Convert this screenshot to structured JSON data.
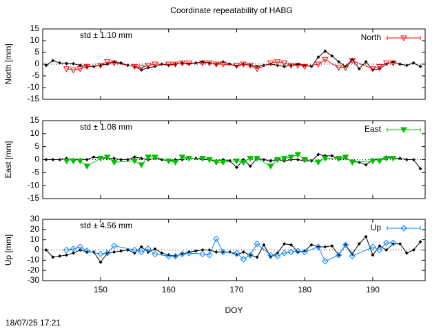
{
  "title": "Coordinate repeatability of HABG",
  "timestamp": "18/07/25 17:21",
  "chart_data": [
    {
      "type": "line",
      "ylabel": "North [mm]",
      "annotation": "std ± 1.10 mm",
      "xlim": [
        141.5,
        197.7
      ],
      "xticks": [
        150,
        160,
        170,
        180,
        190
      ],
      "ylim": [
        -15,
        15
      ],
      "yticks": [
        -15,
        -10,
        -5,
        0,
        5,
        10,
        15
      ],
      "series": [
        {
          "color": "#000000",
          "marker": "diamond-filled",
          "x": [
            142,
            143,
            144,
            145,
            146,
            147,
            148,
            149,
            150,
            151,
            152,
            153,
            154,
            155,
            156,
            157,
            158,
            159,
            160,
            161,
            162,
            163,
            164,
            165,
            166,
            167,
            168,
            169,
            170,
            171,
            172,
            173,
            174,
            175,
            176,
            177,
            178,
            179,
            180,
            181,
            182,
            183,
            184,
            185,
            186,
            187,
            188,
            189,
            190,
            191,
            192,
            193,
            194,
            195,
            196,
            197
          ],
          "values": [
            -0.5,
            1.5,
            0.5,
            0.3,
            0.2,
            -0.5,
            -1,
            -1,
            -0.5,
            0,
            1,
            0.5,
            -0.5,
            -1,
            -2.5,
            -1.5,
            -1,
            0,
            -0.5,
            0,
            0.5,
            0,
            0.5,
            1,
            0.5,
            0,
            1,
            0,
            -1,
            0,
            -0.5,
            -1,
            -0.5,
            0,
            -0.5,
            -1,
            -0.5,
            0,
            -0.5,
            -1,
            3,
            5.5,
            3.5,
            1,
            -1,
            2,
            -2,
            1,
            -2.5,
            -2,
            0,
            1,
            0,
            -0.5,
            0.5,
            -1
          ]
        },
        {
          "name": "North",
          "color": "#ff0000",
          "marker": "triangle-open",
          "x": [
            145,
            146,
            147,
            148,
            150,
            151,
            152,
            155,
            156,
            157,
            158,
            160,
            161,
            162,
            163,
            165,
            166,
            167,
            168,
            170,
            171,
            172,
            173,
            175,
            176,
            177,
            178,
            179,
            180,
            182,
            183,
            185,
            186,
            187,
            190,
            191,
            192,
            193
          ],
          "values": [
            -2,
            -2.5,
            -2,
            -1,
            -0.5,
            1,
            0.5,
            -1,
            -1.5,
            -0.5,
            0,
            0,
            0,
            0.5,
            0.5,
            0.5,
            0.5,
            0,
            0,
            -0.5,
            0,
            -0.5,
            -2,
            0.5,
            1,
            0.5,
            -0.5,
            -0.5,
            -1,
            0,
            2,
            -1.5,
            -1.5,
            1.5,
            -2,
            -1,
            0.5,
            0.5
          ]
        }
      ]
    },
    {
      "type": "line",
      "ylabel": "East [mm]",
      "annotation": "std ± 1.08 mm",
      "xlim": [
        141.5,
        197.7
      ],
      "xticks": [
        150,
        160,
        170,
        180,
        190
      ],
      "ylim": [
        -15,
        15
      ],
      "yticks": [
        -15,
        -10,
        -5,
        0,
        5,
        10,
        15
      ],
      "series": [
        {
          "color": "#000000",
          "marker": "diamond-filled",
          "x": [
            142,
            143,
            144,
            145,
            146,
            147,
            148,
            149,
            150,
            151,
            152,
            153,
            154,
            155,
            156,
            157,
            158,
            159,
            160,
            161,
            162,
            163,
            164,
            165,
            166,
            167,
            168,
            169,
            170,
            171,
            172,
            173,
            174,
            175,
            176,
            177,
            178,
            179,
            180,
            181,
            182,
            183,
            184,
            185,
            186,
            187,
            188,
            189,
            190,
            191,
            192,
            193,
            194,
            195,
            196,
            197
          ],
          "values": [
            0,
            0,
            0,
            0.5,
            0,
            0,
            0,
            1,
            0.5,
            0.5,
            0.5,
            0,
            0,
            1,
            0.5,
            0,
            0.5,
            0,
            -0.5,
            0,
            0,
            0.5,
            0.5,
            0,
            0,
            -0.5,
            0,
            -0.5,
            -3,
            0,
            -2.5,
            0.5,
            0,
            -0.5,
            0,
            -0.5,
            0,
            0,
            -0.5,
            -0.5,
            2,
            1.5,
            1.5,
            0,
            0.5,
            -0.5,
            -1,
            -2,
            0,
            0,
            1,
            0.5,
            0.5,
            0,
            0,
            -3.5
          ]
        },
        {
          "name": "East",
          "color": "#00c000",
          "marker": "triangle-filled",
          "x": [
            145,
            146,
            147,
            148,
            150,
            151,
            152,
            155,
            156,
            157,
            158,
            160,
            161,
            162,
            163,
            165,
            166,
            167,
            168,
            170,
            171,
            172,
            173,
            175,
            176,
            177,
            178,
            179,
            180,
            182,
            183,
            185,
            186,
            187,
            190,
            191,
            192,
            193
          ],
          "values": [
            -0.5,
            -0.5,
            -0.5,
            -2.5,
            0.5,
            1,
            -1,
            -0.5,
            -2,
            1,
            1,
            -0.5,
            -1,
            1,
            0.5,
            0.5,
            0,
            -1,
            -1,
            -0.5,
            -1,
            0.5,
            0.5,
            -2.5,
            0,
            0.5,
            1,
            2,
            0,
            -1,
            0.5,
            0.5,
            1,
            -1,
            -0.5,
            -0.5,
            0.5,
            0.5
          ]
        }
      ]
    },
    {
      "type": "line",
      "ylabel": "Up [mm]",
      "annotation": "std ± 4.56 mm",
      "xlabel": "DOY",
      "xlim": [
        141.5,
        197.7
      ],
      "xticks": [
        150,
        160,
        170,
        180,
        190
      ],
      "ylim": [
        -30,
        30
      ],
      "yticks": [
        -30,
        -20,
        -10,
        0,
        10,
        20,
        30
      ],
      "series": [
        {
          "color": "#000000",
          "marker": "diamond-filled",
          "x": [
            142,
            143,
            144,
            145,
            146,
            147,
            148,
            149,
            150,
            151,
            152,
            153,
            154,
            155,
            156,
            157,
            158,
            159,
            160,
            161,
            162,
            163,
            164,
            165,
            166,
            167,
            168,
            169,
            170,
            171,
            172,
            173,
            174,
            175,
            176,
            177,
            178,
            179,
            180,
            181,
            182,
            183,
            184,
            185,
            186,
            187,
            188,
            189,
            190,
            191,
            192,
            193,
            194,
            195,
            196,
            197
          ],
          "values": [
            0,
            -7,
            -6,
            -5,
            -3,
            0,
            -2,
            -2,
            -12,
            -3,
            -2,
            -1,
            0,
            -3,
            3,
            -2,
            1,
            -3,
            -5,
            -6,
            -4,
            -2,
            -1,
            0,
            0,
            -2,
            -2,
            -2,
            -5,
            -2,
            -5,
            -7,
            5,
            -7,
            -3,
            6,
            5,
            -2,
            -1,
            5,
            3,
            3,
            4,
            -5,
            5,
            -4,
            6,
            13,
            -5,
            4,
            0,
            6,
            6,
            -3,
            0,
            8
          ]
        },
        {
          "name": "Up",
          "color": "#0080ff",
          "marker": "diamond-open",
          "x": [
            145,
            146,
            147,
            148,
            150,
            151,
            152,
            155,
            156,
            157,
            158,
            160,
            161,
            162,
            163,
            165,
            166,
            167,
            168,
            170,
            171,
            172,
            173,
            175,
            176,
            177,
            178,
            179,
            180,
            182,
            183,
            185,
            186,
            187,
            190,
            191,
            192,
            193
          ],
          "values": [
            0,
            1,
            3,
            -1,
            -4,
            -3,
            4,
            0,
            -2,
            1,
            -4,
            -6,
            -6,
            -4,
            -3,
            -4,
            -5,
            11,
            -2,
            -3,
            -9,
            -5,
            6,
            -5,
            -6,
            -3,
            -2,
            -1,
            -2,
            3,
            -11,
            -5,
            5,
            -6,
            3,
            0,
            7,
            7
          ]
        }
      ]
    }
  ]
}
